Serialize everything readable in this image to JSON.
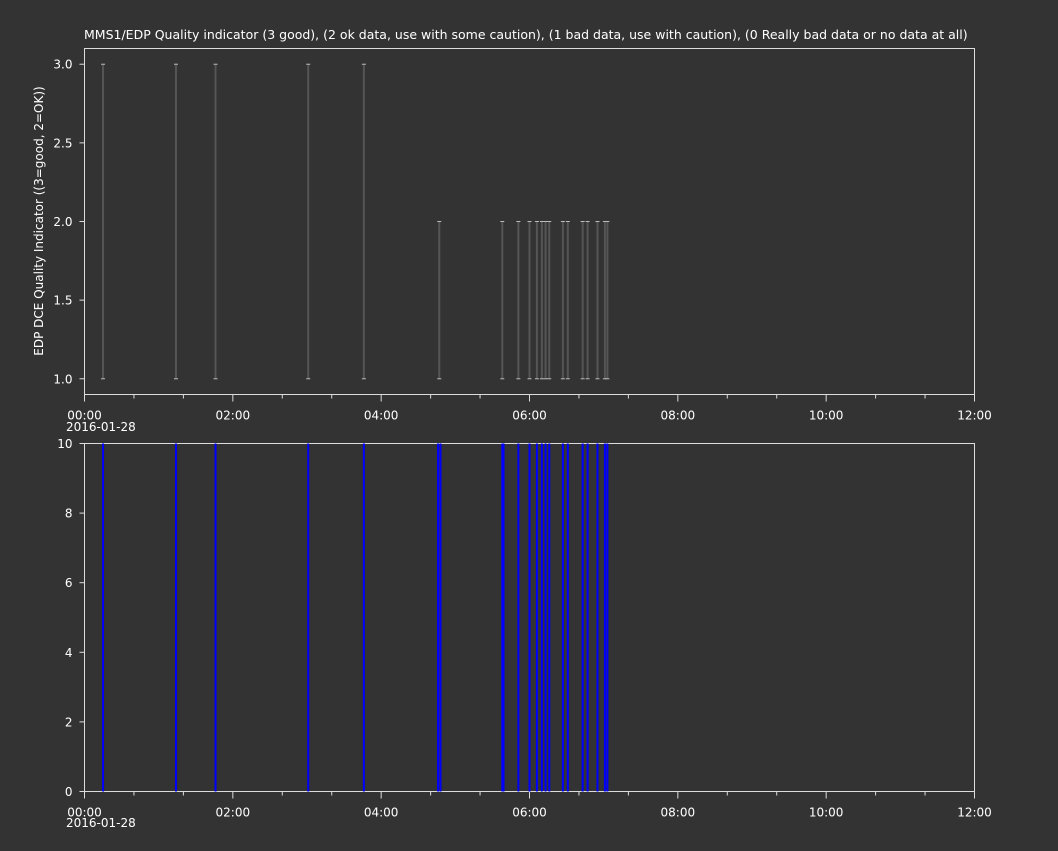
{
  "chart_data": [
    {
      "type": "bar",
      "title": "MMS1/EDP  Quality indicator (3 good), (2 ok data, use with some caution), (1 bad data, use with caution), (0 Really bad data or no data at all)",
      "ylabel": "EDP DCE Quality Indicator ((3=good, 2=OK))",
      "xlabel": "",
      "xlim": [
        "00:00",
        "12:00"
      ],
      "ylim": [
        0.9,
        3.1
      ],
      "x_tick_labels": [
        "00:00",
        "02:00",
        "04:00",
        "06:00",
        "08:00",
        "10:00",
        "12:00"
      ],
      "x_date_label": "2016-01-28",
      "y_tick_labels": [
        "1.0",
        "1.5",
        "2.0",
        "2.5",
        "3.0"
      ],
      "y_ticks": [
        1.0,
        1.5,
        2.0,
        2.5,
        3.0
      ],
      "x_minor_step_minutes": 40,
      "grid": false,
      "color": "#555555",
      "bars": [
        {
          "time": "00:15",
          "low": 1,
          "high": 3
        },
        {
          "time": "01:14",
          "low": 1,
          "high": 3
        },
        {
          "time": "01:46",
          "low": 1,
          "high": 3
        },
        {
          "time": "03:01",
          "low": 1,
          "high": 3
        },
        {
          "time": "03:46",
          "low": 1,
          "high": 3
        },
        {
          "time": "04:47",
          "low": 1,
          "high": 2
        },
        {
          "time": "05:38",
          "low": 1,
          "high": 2
        },
        {
          "time": "05:51",
          "low": 1,
          "high": 2
        },
        {
          "time": "06:00",
          "low": 1,
          "high": 2
        },
        {
          "time": "06:06",
          "low": 1,
          "high": 2
        },
        {
          "time": "06:10",
          "low": 1,
          "high": 2
        },
        {
          "time": "06:13",
          "low": 1,
          "high": 2
        },
        {
          "time": "06:16",
          "low": 1,
          "high": 2
        },
        {
          "time": "06:27",
          "low": 1,
          "high": 2
        },
        {
          "time": "06:31",
          "low": 1,
          "high": 2
        },
        {
          "time": "06:43",
          "low": 1,
          "high": 2
        },
        {
          "time": "06:47",
          "low": 1,
          "high": 2
        },
        {
          "time": "06:55",
          "low": 1,
          "high": 2
        },
        {
          "time": "07:01",
          "low": 1,
          "high": 2
        },
        {
          "time": "07:03",
          "low": 1,
          "high": 2
        }
      ]
    },
    {
      "type": "bar",
      "title": "",
      "ylabel": "",
      "xlabel": "",
      "xlim": [
        "00:00",
        "12:00"
      ],
      "ylim": [
        0,
        10
      ],
      "x_tick_labels": [
        "00:00",
        "02:00",
        "04:00",
        "06:00",
        "08:00",
        "10:00",
        "12:00"
      ],
      "x_date_label": "2016-01-28",
      "y_tick_labels": [
        "0",
        "2",
        "4",
        "6",
        "8",
        "10"
      ],
      "y_ticks": [
        0,
        2,
        4,
        6,
        8,
        10
      ],
      "x_minor_step_minutes": 40,
      "grid": false,
      "color": "#0000ff",
      "bars": [
        {
          "time": "00:15",
          "low": 0,
          "high": 10
        },
        {
          "time": "01:14",
          "low": 0,
          "high": 10
        },
        {
          "time": "01:46",
          "low": 0,
          "high": 10
        },
        {
          "time": "03:01",
          "low": 0,
          "high": 10
        },
        {
          "time": "03:46",
          "low": 0,
          "high": 10
        },
        {
          "time": "04:46",
          "low": 0,
          "high": 10
        },
        {
          "time": "04:48",
          "low": 0,
          "high": 10
        },
        {
          "time": "05:38",
          "low": 0,
          "high": 10
        },
        {
          "time": "05:39",
          "low": 0,
          "high": 10
        },
        {
          "time": "05:51",
          "low": 0,
          "high": 10
        },
        {
          "time": "06:00",
          "low": 0,
          "high": 10
        },
        {
          "time": "06:06",
          "low": 0,
          "high": 10
        },
        {
          "time": "06:10",
          "low": 0,
          "high": 10
        },
        {
          "time": "06:13",
          "low": 0,
          "high": 10
        },
        {
          "time": "06:16",
          "low": 0,
          "high": 10
        },
        {
          "time": "06:27",
          "low": 0,
          "high": 10
        },
        {
          "time": "06:31",
          "low": 0,
          "high": 10
        },
        {
          "time": "06:43",
          "low": 0,
          "high": 10
        },
        {
          "time": "06:47",
          "low": 0,
          "high": 10
        },
        {
          "time": "06:55",
          "low": 0,
          "high": 10
        },
        {
          "time": "07:01",
          "low": 0,
          "high": 10
        },
        {
          "time": "07:03",
          "low": 0,
          "high": 10
        }
      ]
    }
  ]
}
